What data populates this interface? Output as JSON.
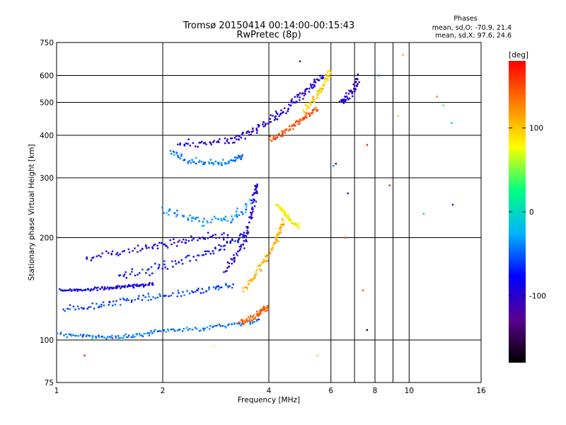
{
  "chart_data": {
    "type": "scatter",
    "title": "Tromsø 20150414 00:14:00-00:15:43",
    "subtitle": "RwPretec (8p)",
    "xlabel": "Frequency [MHz]",
    "ylabel": "Stationary phase Virtual Height [km]",
    "x_scale": "log",
    "y_scale": "log",
    "xlim": [
      1,
      16
    ],
    "ylim": [
      75,
      750
    ],
    "x_ticks": [
      1,
      2,
      4,
      6,
      8,
      10,
      16
    ],
    "x_tick_labels": [
      "1",
      "2",
      "4",
      "6",
      "8",
      "10",
      "16"
    ],
    "x_grid": [
      1,
      2,
      4,
      6,
      7,
      8,
      9,
      10,
      16
    ],
    "y_ticks": [
      75,
      100,
      200,
      300,
      400,
      500,
      600,
      750
    ],
    "y_tick_labels": [
      "75",
      "100",
      "200",
      "300",
      "400",
      "500",
      "600",
      "750"
    ],
    "y_grid": [
      100,
      200,
      300,
      400,
      500,
      600
    ],
    "grid": true,
    "colorbar": {
      "label": "[deg]",
      "range": [
        -180,
        180
      ],
      "ticks": [
        100,
        0,
        -100
      ],
      "tick_labels": [
        "100",
        "0",
        "-100"
      ],
      "colors": [
        "#000000",
        "#5a0090",
        "#0000ff",
        "#00b4ff",
        "#00ff80",
        "#ffff00",
        "#ff8000",
        "#ff0000"
      ]
    },
    "stats": {
      "heading": "Phases",
      "line_o": "mean, sd,O: -70.9, 21.4",
      "line_x": "mean, sd,X:  97.6, 24.6"
    },
    "clusters": [
      {
        "points": [
          [
            1.02,
            140
          ],
          [
            1.12,
            140
          ],
          [
            1.25,
            141
          ],
          [
            1.38,
            142
          ],
          [
            1.5,
            143
          ],
          [
            1.62,
            144
          ],
          [
            1.75,
            145
          ],
          [
            1.9,
            146
          ]
        ],
        "phase": -85,
        "spread": 0.015
      },
      {
        "points": [
          [
            1.0,
            104
          ],
          [
            1.15,
            103
          ],
          [
            1.3,
            102
          ],
          [
            1.5,
            102
          ],
          [
            1.7,
            103
          ],
          [
            1.9,
            106
          ],
          [
            2.2,
            107
          ],
          [
            2.6,
            108
          ],
          [
            3.0,
            110
          ],
          [
            3.4,
            112
          ],
          [
            3.8,
            114
          ]
        ],
        "phase": -45,
        "spread": 0.02
      },
      {
        "points": [
          [
            1.05,
            122
          ],
          [
            1.25,
            125
          ],
          [
            1.45,
            128
          ],
          [
            1.7,
            132
          ],
          [
            2.0,
            135
          ],
          [
            2.4,
            138
          ],
          [
            2.8,
            142
          ],
          [
            3.2,
            145
          ]
        ],
        "phase": -60,
        "spread": 0.035
      },
      {
        "points": [
          [
            1.2,
            175
          ],
          [
            1.45,
            180
          ],
          [
            1.75,
            185
          ],
          [
            2.0,
            190
          ],
          [
            2.3,
            195
          ],
          [
            2.7,
            200
          ],
          [
            3.1,
            205
          ]
        ],
        "phase": -90,
        "spread": 0.04
      },
      {
        "points": [
          [
            1.5,
            155
          ],
          [
            1.8,
            160
          ],
          [
            2.1,
            168
          ],
          [
            2.5,
            178
          ],
          [
            2.9,
            188
          ],
          [
            3.2,
            198
          ],
          [
            3.5,
            208
          ]
        ],
        "phase": -80,
        "spread": 0.045
      },
      {
        "points": [
          [
            2.0,
            240
          ],
          [
            2.3,
            230
          ],
          [
            2.6,
            222
          ],
          [
            3.0,
            225
          ],
          [
            3.3,
            235
          ],
          [
            3.6,
            255
          ]
        ],
        "phase": -35,
        "spread": 0.05
      },
      {
        "points": [
          [
            3.0,
            160
          ],
          [
            3.2,
            175
          ],
          [
            3.4,
            195
          ],
          [
            3.5,
            215
          ],
          [
            3.6,
            240
          ],
          [
            3.65,
            270
          ],
          [
            3.7,
            290
          ]
        ],
        "phase": -100,
        "spread": 0.035
      },
      {
        "points": [
          [
            3.4,
            140
          ],
          [
            3.6,
            152
          ],
          [
            3.8,
            165
          ],
          [
            4.0,
            180
          ],
          [
            4.2,
            195
          ],
          [
            4.3,
            210
          ],
          [
            4.4,
            225
          ]
        ],
        "phase": 110,
        "spread": 0.03
      },
      {
        "points": [
          [
            3.3,
            112
          ],
          [
            3.5,
            115
          ],
          [
            3.7,
            118
          ],
          [
            3.85,
            122
          ],
          [
            4.0,
            126
          ]
        ],
        "phase": 145,
        "spread": 0.03
      },
      {
        "points": [
          [
            4.2,
            250
          ],
          [
            4.4,
            240
          ],
          [
            4.5,
            230
          ],
          [
            4.7,
            220
          ],
          [
            4.9,
            215
          ]
        ],
        "phase": 80,
        "spread": 0.02
      },
      {
        "points": [
          [
            2.1,
            355
          ],
          [
            2.3,
            340
          ],
          [
            2.6,
            330
          ],
          [
            2.9,
            330
          ],
          [
            3.2,
            335
          ],
          [
            3.4,
            345
          ]
        ],
        "phase": -40,
        "spread": 0.035
      },
      {
        "points": [
          [
            2.2,
            380
          ],
          [
            2.6,
            380
          ],
          [
            3.0,
            385
          ],
          [
            3.3,
            395
          ],
          [
            3.6,
            410
          ],
          [
            3.9,
            430
          ],
          [
            4.2,
            455
          ],
          [
            4.5,
            480
          ],
          [
            4.8,
            510
          ],
          [
            5.1,
            540
          ],
          [
            5.4,
            570
          ],
          [
            5.7,
            600
          ]
        ],
        "phase": -95,
        "spread": 0.04
      },
      {
        "points": [
          [
            4.0,
            390
          ],
          [
            4.3,
            400
          ],
          [
            4.6,
            420
          ],
          [
            4.9,
            440
          ],
          [
            5.2,
            460
          ],
          [
            5.5,
            480
          ]
        ],
        "phase": 150,
        "spread": 0.03
      },
      {
        "points": [
          [
            5.0,
            470
          ],
          [
            5.3,
            500
          ],
          [
            5.6,
            540
          ],
          [
            5.8,
            580
          ],
          [
            6.0,
            620
          ]
        ],
        "phase": 100,
        "spread": 0.035
      },
      {
        "points": [
          [
            6.4,
            500
          ],
          [
            6.7,
            520
          ],
          [
            7.0,
            550
          ],
          [
            7.2,
            600
          ]
        ],
        "phase": -100,
        "spread": 0.045
      }
    ],
    "scattered": [
      [
        1.2,
        90,
        175
      ],
      [
        2.8,
        96,
        80
      ],
      [
        5.5,
        90,
        95
      ],
      [
        7.6,
        107,
        -170
      ],
      [
        11,
        235,
        -10
      ],
      [
        12,
        520,
        130
      ],
      [
        12.5,
        490,
        30
      ],
      [
        13.2,
        435,
        -20
      ],
      [
        13.3,
        250,
        -70
      ],
      [
        8.8,
        285,
        165
      ],
      [
        6.1,
        325,
        -40
      ],
      [
        6.2,
        330,
        -160
      ],
      [
        6.6,
        200,
        160
      ],
      [
        7.4,
        140,
        150
      ],
      [
        7.6,
        375,
        170
      ],
      [
        9.3,
        455,
        100
      ],
      [
        9.6,
        690,
        110
      ],
      [
        8.2,
        600,
        -45
      ],
      [
        6.7,
        270,
        -90
      ],
      [
        4.9,
        660,
        -110
      ]
    ]
  }
}
